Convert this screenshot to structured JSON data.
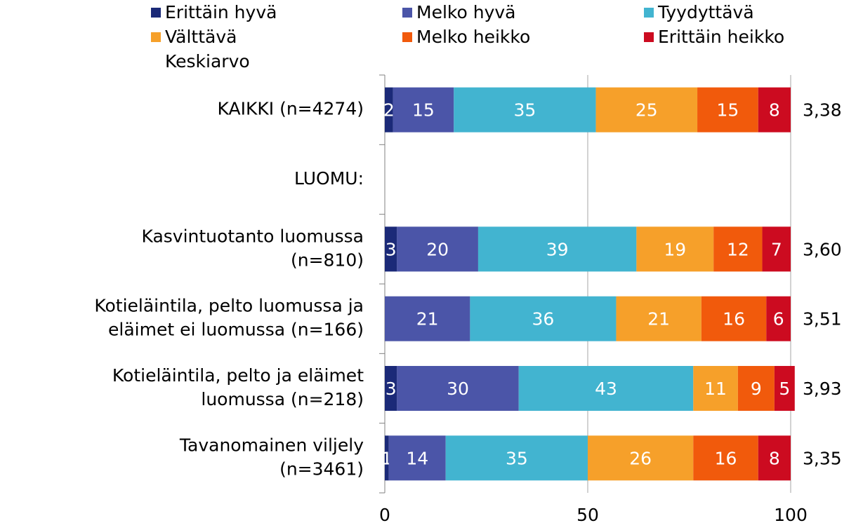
{
  "chart_data": {
    "type": "stacked-bar-horizontal",
    "categories": [
      "KAIKKI (n=4274)",
      "LUOMU:",
      "Kasvintuotanto luomussa\n(n=810)",
      "Kotieläintila, pelto luomussa ja\neläimet ei luomussa (n=166)",
      "Kotieläintila, pelto ja eläimet\nluomussa (n=218)",
      "Tavanomainen viljely\n(n=3461)"
    ],
    "series": [
      {
        "name": "Erittäin hyvä",
        "color": "#1b2a78",
        "values": [
          2,
          null,
          3,
          null,
          3,
          1
        ]
      },
      {
        "name": "Melko hyvä",
        "color": "#4b55a8",
        "values": [
          15,
          null,
          20,
          21,
          30,
          14
        ]
      },
      {
        "name": "Tyydyttävä",
        "color": "#42b4d0",
        "values": [
          35,
          null,
          39,
          36,
          43,
          35
        ]
      },
      {
        "name": "Välttävä",
        "color": "#f6a02a",
        "values": [
          25,
          null,
          19,
          21,
          11,
          26
        ]
      },
      {
        "name": "Melko heikko",
        "color": "#f15a0c",
        "values": [
          15,
          null,
          12,
          16,
          9,
          16
        ]
      },
      {
        "name": "Erittäin heikko",
        "color": "#cc0b20",
        "values": [
          8,
          null,
          7,
          6,
          5,
          8
        ]
      }
    ],
    "mean": {
      "name": "Keskiarvo",
      "values": [
        3.38,
        null,
        3.6,
        3.51,
        3.93,
        3.35
      ],
      "value_labels": [
        "3,38",
        null,
        "3,60",
        "3,51",
        "3,93",
        "3,35"
      ]
    },
    "xlim": [
      0,
      100
    ],
    "xticks": [
      0,
      50,
      100
    ],
    "grid": true,
    "legend": "top"
  }
}
